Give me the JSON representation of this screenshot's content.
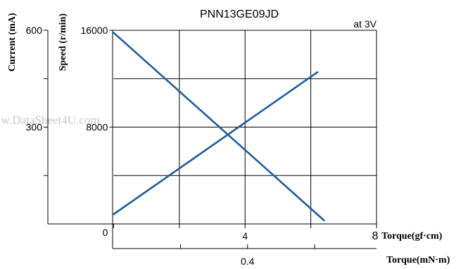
{
  "chart_data": {
    "type": "line",
    "title": "PNN13GE09JD",
    "annotation": "at 3V",
    "watermark": "w.DataSheet4U.com",
    "x_axis": {
      "label": "Torque(gf·cm)",
      "range": [
        -2,
        8
      ],
      "ticks": [
        {
          "value": 0,
          "label": "0"
        },
        {
          "value": 2,
          "label": ""
        },
        {
          "value": 4,
          "label": "4"
        },
        {
          "value": 6,
          "label": ""
        },
        {
          "value": 8,
          "label": "8"
        }
      ]
    },
    "x2_axis": {
      "label": "Torque(mN·m)",
      "range": [
        -0.196,
        0.785
      ],
      "ticks": [
        {
          "value": 0.2,
          "label": ""
        },
        {
          "value": 0.4,
          "label": "0.4"
        },
        {
          "value": 0.6,
          "label": ""
        }
      ]
    },
    "y_current": {
      "label": "Current (mA)",
      "range": [
        0,
        600
      ],
      "ticks": [
        {
          "value": 600,
          "label": "600"
        },
        {
          "value": 450,
          "label": ""
        },
        {
          "value": 300,
          "label": "300"
        },
        {
          "value": 150,
          "label": ""
        }
      ]
    },
    "y_speed": {
      "label": "Speed (r/min)",
      "range": [
        0,
        16000
      ],
      "ticks": [
        {
          "value": 16000,
          "label": "16000"
        },
        {
          "value": 8000,
          "label": "8000"
        }
      ]
    },
    "series": [
      {
        "key": "speed",
        "axis": "y_speed",
        "x": [
          0,
          6.4
        ],
        "y": [
          15800,
          300
        ]
      },
      {
        "key": "current",
        "axis": "y_current",
        "x": [
          0,
          6.2
        ],
        "y": [
          30,
          470
        ]
      }
    ],
    "grid": true,
    "colors": {
      "line": "#1f5c99",
      "axis": "#000000"
    }
  }
}
